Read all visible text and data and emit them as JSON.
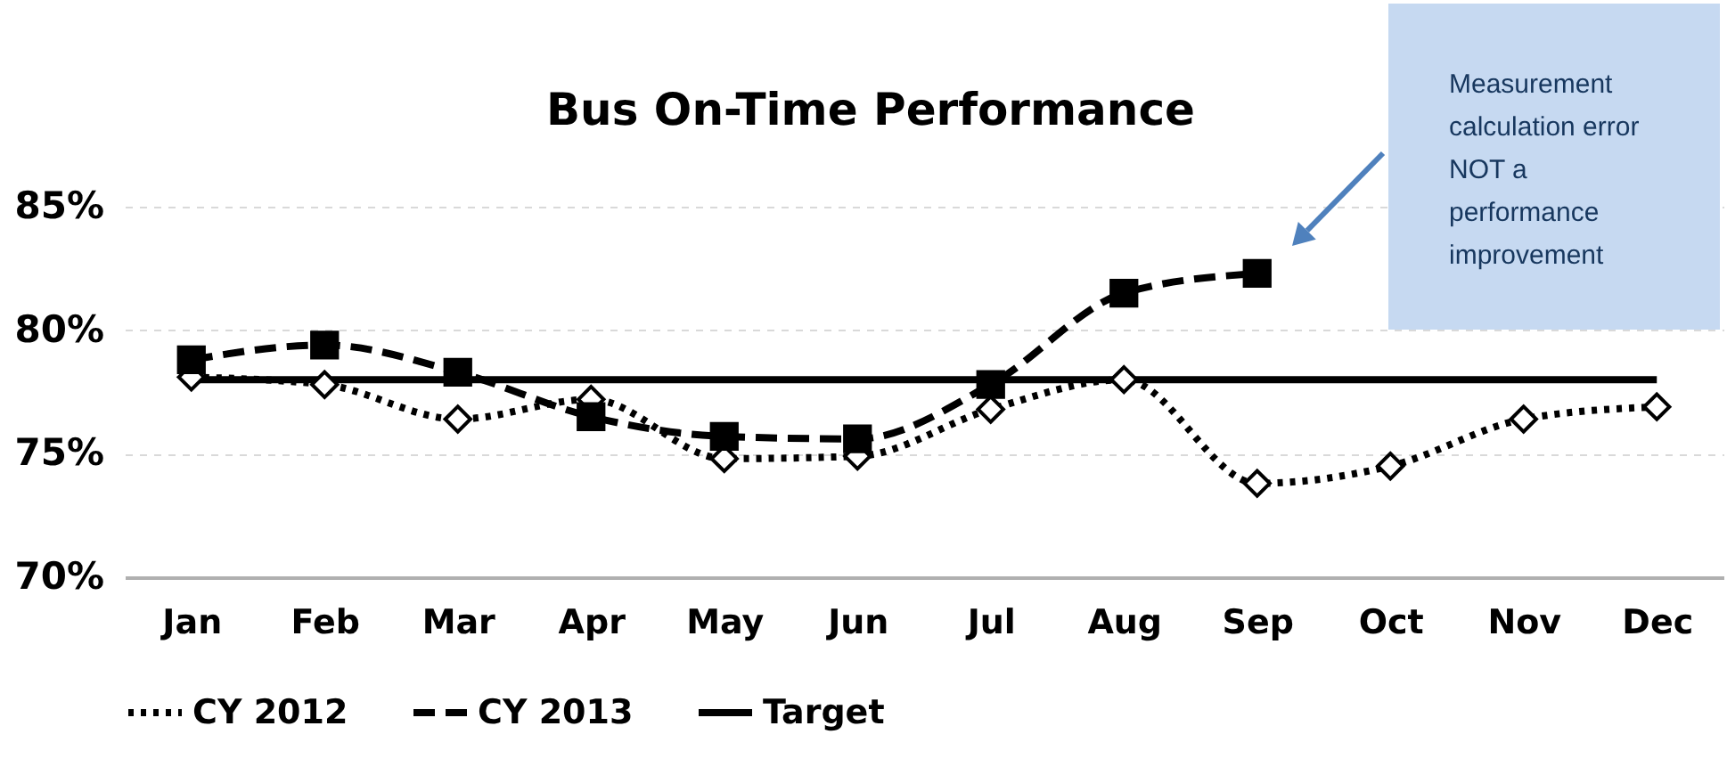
{
  "chart_data": {
    "type": "line",
    "title": "Bus On-Time Performance",
    "categories": [
      "Jan",
      "Feb",
      "Mar",
      "Apr",
      "May",
      "Jun",
      "Jul",
      "Aug",
      "Sep",
      "Oct",
      "Nov",
      "Dec"
    ],
    "series": [
      {
        "name": "CY 2012",
        "color": "#000000",
        "marker": "diamond",
        "line_style": "dotted",
        "values": [
          78.1,
          77.8,
          76.4,
          77.2,
          74.8,
          74.9,
          76.8,
          78.0,
          73.8,
          74.5,
          76.4,
          76.9
        ]
      },
      {
        "name": "CY 2013",
        "color": "#000000",
        "marker": "square",
        "line_style": "dashed",
        "values": [
          78.8,
          79.4,
          78.3,
          76.5,
          75.7,
          75.6,
          77.8,
          81.5,
          82.3,
          null,
          null,
          null
        ]
      },
      {
        "name": "Target",
        "color": "#000000",
        "marker": "none",
        "line_style": "solid",
        "values": [
          78.0,
          78.0,
          78.0,
          78.0,
          78.0,
          78.0,
          78.0,
          78.0,
          78.0,
          78.0,
          78.0,
          78.0
        ]
      }
    ],
    "ylim": [
      70,
      85
    ],
    "yticks": [
      {
        "value": 70,
        "label": "70%"
      },
      {
        "value": 75,
        "label": "75%"
      },
      {
        "value": 80,
        "label": "80%"
      },
      {
        "value": 85,
        "label": "85%"
      }
    ],
    "grid": "y",
    "legend": "bottom",
    "annotations": [
      "Measurement calculation error NOT a performance improvement"
    ]
  }
}
